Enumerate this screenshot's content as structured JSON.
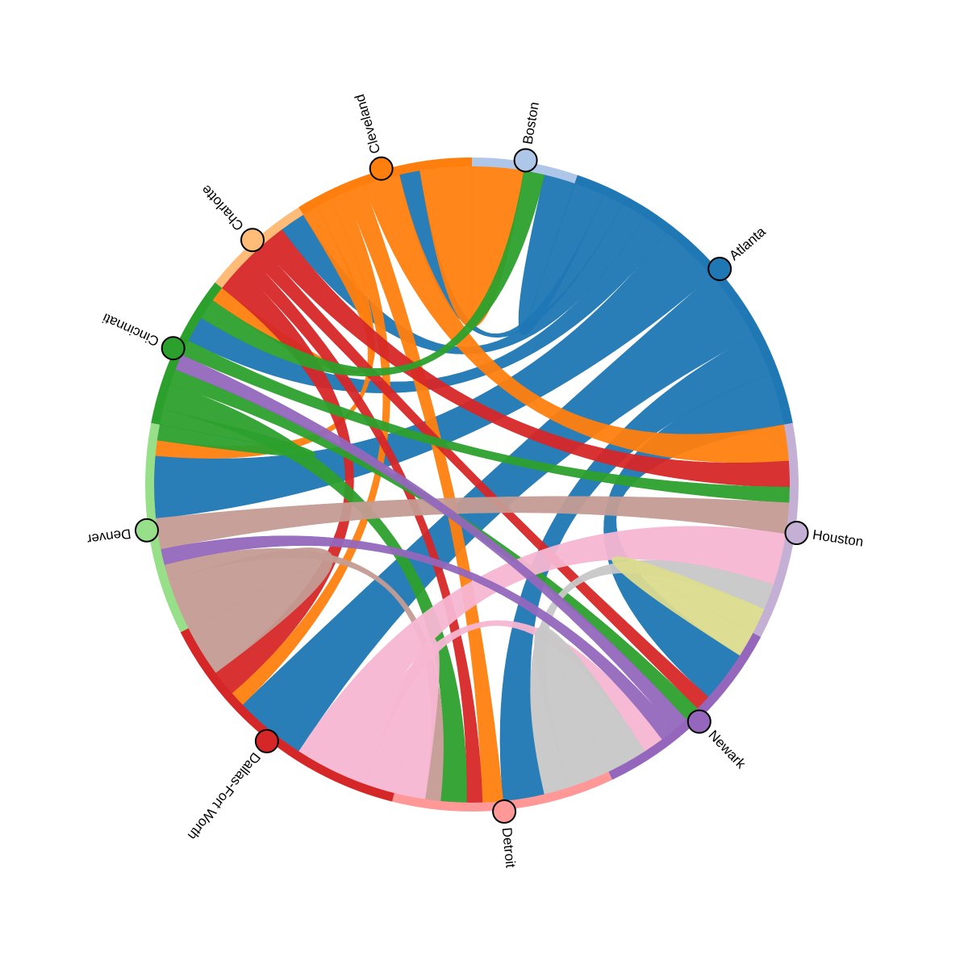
{
  "chart_data": {
    "type": "chord",
    "nodes": [
      {
        "name": "Boston",
        "color": "#aec7e8"
      },
      {
        "name": "Atlanta",
        "color": "#1f77b4"
      },
      {
        "name": "Houston",
        "color": "#c5b0d5"
      },
      {
        "name": "Newark",
        "color": "#9467bd"
      },
      {
        "name": "Detroit",
        "color": "#ff9896"
      },
      {
        "name": "Dallas-Fort Worth",
        "color": "#d62728"
      },
      {
        "name": "Denver",
        "color": "#98df8a"
      },
      {
        "name": "Cincinnati",
        "color": "#2ca02c"
      },
      {
        "name": "Charlotte",
        "color": "#ffbb78"
      },
      {
        "name": "Cleveland",
        "color": "#ff7f0e"
      }
    ],
    "links": [
      {
        "source": 1,
        "target": 6,
        "value": 12,
        "color": "#1f77b4"
      },
      {
        "source": 1,
        "target": 5,
        "value": 14,
        "color": "#1f77b4"
      },
      {
        "source": 1,
        "target": 3,
        "value": 10,
        "color": "#1f77b4"
      },
      {
        "source": 1,
        "target": 4,
        "value": 8,
        "color": "#1f77b4"
      },
      {
        "source": 1,
        "target": 0,
        "value": 6,
        "color": "#1f77b4"
      },
      {
        "source": 1,
        "target": 7,
        "value": 5,
        "color": "#1f77b4"
      },
      {
        "source": 1,
        "target": 8,
        "value": 5,
        "color": "#1f77b4"
      },
      {
        "source": 1,
        "target": 9,
        "value": 4,
        "color": "#1f77b4"
      },
      {
        "source": 9,
        "target": 0,
        "value": 10,
        "color": "#ff7f0e"
      },
      {
        "source": 9,
        "target": 2,
        "value": 7,
        "color": "#ff7f0e"
      },
      {
        "source": 9,
        "target": 7,
        "value": 3,
        "color": "#ff7f0e"
      },
      {
        "source": 9,
        "target": 4,
        "value": 4,
        "color": "#ff7f0e"
      },
      {
        "source": 9,
        "target": 6,
        "value": 3,
        "color": "#ff7f0e"
      },
      {
        "source": 9,
        "target": 5,
        "value": 3,
        "color": "#ff7f0e"
      },
      {
        "source": 8,
        "target": 5,
        "value": 5,
        "color": "#d62728"
      },
      {
        "source": 8,
        "target": 2,
        "value": 5,
        "color": "#d62728"
      },
      {
        "source": 8,
        "target": 3,
        "value": 3,
        "color": "#d62728"
      },
      {
        "source": 8,
        "target": 4,
        "value": 3,
        "color": "#d62728"
      },
      {
        "source": 7,
        "target": 4,
        "value": 5,
        "color": "#2ca02c"
      },
      {
        "source": 7,
        "target": 0,
        "value": 4,
        "color": "#2ca02c"
      },
      {
        "source": 7,
        "target": 2,
        "value": 3,
        "color": "#2ca02c"
      },
      {
        "source": 7,
        "target": 3,
        "value": 3,
        "color": "#2ca02c"
      },
      {
        "source": 7,
        "target": 6,
        "value": 3,
        "color": "#2ca02c"
      },
      {
        "source": 6,
        "target": 2,
        "value": 6,
        "color": "#c49c94"
      },
      {
        "source": 6,
        "target": 5,
        "value": 10,
        "color": "#c49c94"
      },
      {
        "source": 6,
        "target": 4,
        "value": 3,
        "color": "#c49c94"
      },
      {
        "source": 5,
        "target": 2,
        "value": 10,
        "color": "#f7b6d2"
      },
      {
        "source": 5,
        "target": 4,
        "value": 6,
        "color": "#f7b6d2"
      },
      {
        "source": 5,
        "target": 3,
        "value": 4,
        "color": "#f7b6d2"
      },
      {
        "source": 4,
        "target": 3,
        "value": 8,
        "color": "#c7c7c7"
      },
      {
        "source": 4,
        "target": 2,
        "value": 5,
        "color": "#c7c7c7"
      },
      {
        "source": 3,
        "target": 2,
        "value": 5,
        "color": "#dbdb8d"
      },
      {
        "source": 3,
        "target": 7,
        "value": 3,
        "color": "#9467bd"
      },
      {
        "source": 3,
        "target": 6,
        "value": 3,
        "color": "#9467bd"
      }
    ]
  }
}
